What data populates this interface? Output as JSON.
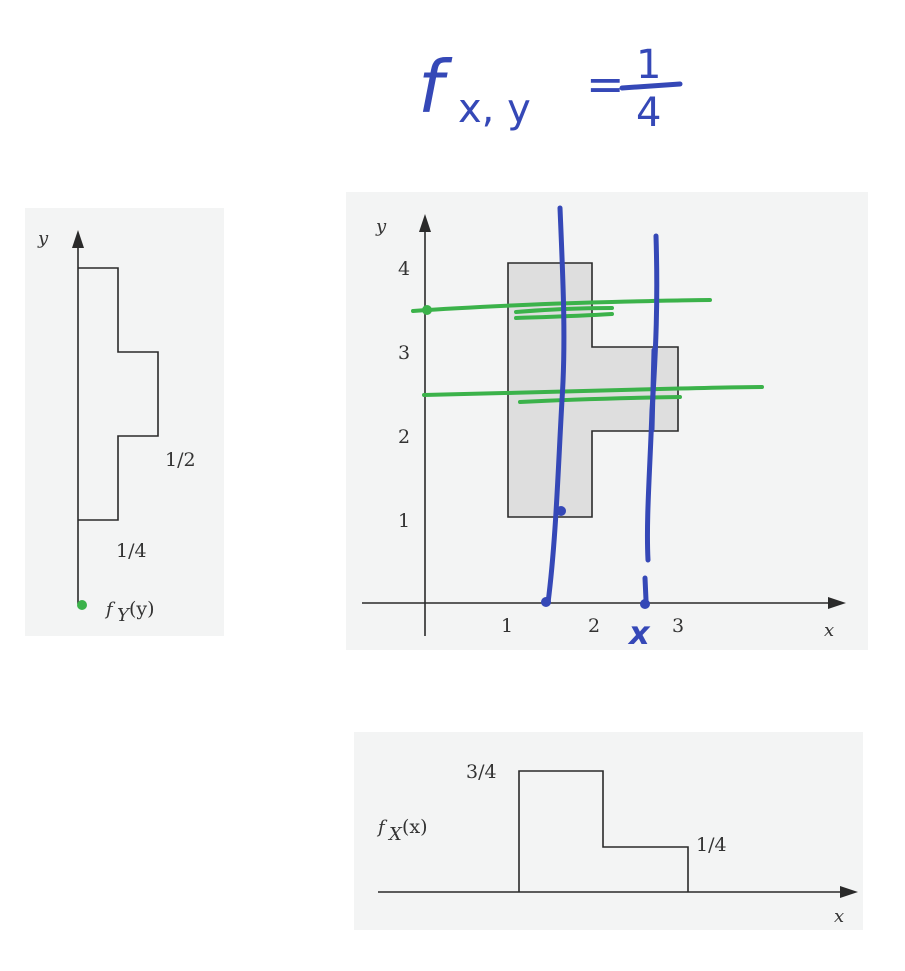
{
  "handwriting": {
    "fxy_main": "f",
    "fxy_sub": "x, y",
    "equals": "=",
    "numerator": "1",
    "denominator": "4",
    "x_mark": "x"
  },
  "fy_panel": {
    "axis_y": "y",
    "value_half": "1/2",
    "value_quarter": "1/4",
    "label_f": "f",
    "label_sub": "Y",
    "label_arg": "(y)"
  },
  "joint_panel": {
    "axis_y": "y",
    "axis_x": "x",
    "y_ticks": [
      "1",
      "2",
      "3",
      "4"
    ],
    "x_ticks": [
      "1",
      "2",
      "3"
    ]
  },
  "fx_panel": {
    "axis_x": "x",
    "value_three_quarters": "3/4",
    "value_quarter": "1/4",
    "label_f": "f",
    "label_sub": "X",
    "label_arg": "(x)"
  },
  "colors": {
    "ink_blue": "#3548b7",
    "ink_green": "#3bb24a",
    "region_fill": "#dedede",
    "panel_bg": "#f3f4f4"
  }
}
